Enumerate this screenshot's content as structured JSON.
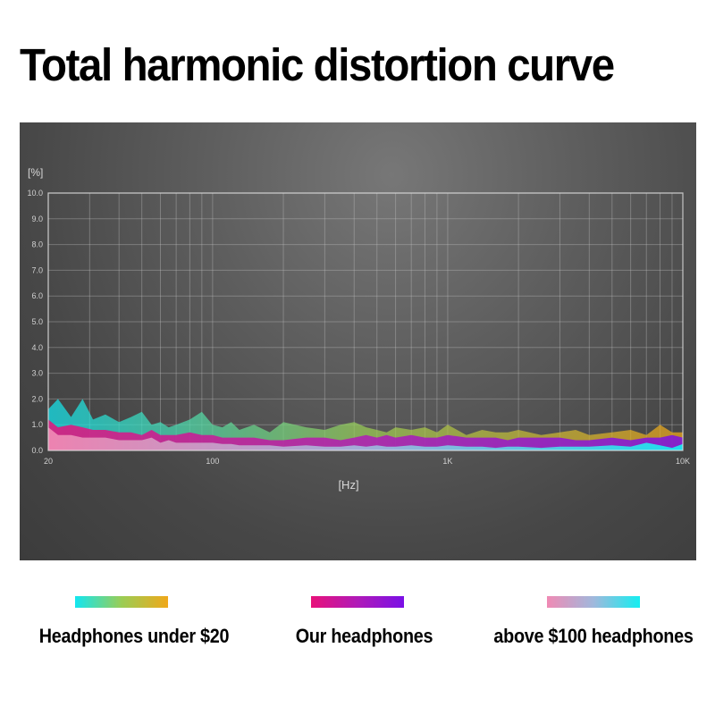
{
  "title": "Total harmonic distortion curve",
  "chart_data": {
    "type": "area",
    "title": "",
    "ylabel": "[%]",
    "xlabel": "[Hz]",
    "xscale": "log",
    "xlim": [
      20,
      10000
    ],
    "ylim": [
      0,
      10
    ],
    "yticks": [
      "0.0",
      "1.0",
      "2.0",
      "3.0",
      "4.0",
      "5.0",
      "6.0",
      "7.0",
      "8.0",
      "9.0",
      "10.0"
    ],
    "xticks": [
      {
        "value": 20,
        "label": "20"
      },
      {
        "value": 100,
        "label": "100"
      },
      {
        "value": 1000,
        "label": "1K"
      },
      {
        "value": 10000,
        "label": "10K"
      }
    ],
    "grid": true,
    "series": [
      {
        "name": "Headphones under $20",
        "gradient": [
          "#12e6f0",
          "#9acd55",
          "#f0a81a"
        ],
        "x": [
          20,
          22,
          25,
          28,
          31,
          35,
          40,
          45,
          50,
          55,
          60,
          65,
          70,
          80,
          90,
          100,
          110,
          120,
          130,
          150,
          175,
          200,
          250,
          300,
          350,
          400,
          450,
          500,
          550,
          600,
          700,
          800,
          900,
          1000,
          1200,
          1400,
          1600,
          1800,
          2000,
          2500,
          3000,
          3500,
          4000,
          5000,
          6000,
          7000,
          8000,
          9000,
          10000
        ],
        "values": [
          1.6,
          2.0,
          1.3,
          2.0,
          1.2,
          1.4,
          1.1,
          1.3,
          1.5,
          1.0,
          1.1,
          0.9,
          1.0,
          1.2,
          1.5,
          1.0,
          0.9,
          1.1,
          0.8,
          1.0,
          0.7,
          1.1,
          0.9,
          0.8,
          1.0,
          1.1,
          0.9,
          0.8,
          0.7,
          0.9,
          0.8,
          0.9,
          0.7,
          1.0,
          0.6,
          0.8,
          0.7,
          0.7,
          0.8,
          0.6,
          0.7,
          0.8,
          0.6,
          0.7,
          0.8,
          0.6,
          1.0,
          0.7,
          0.7
        ]
      },
      {
        "name": "Our headphones",
        "gradient": [
          "#e8127a",
          "#b01ab8",
          "#7a10e6"
        ],
        "x": [
          20,
          22,
          25,
          28,
          31,
          35,
          40,
          45,
          50,
          55,
          60,
          65,
          70,
          80,
          90,
          100,
          110,
          120,
          130,
          150,
          175,
          200,
          250,
          300,
          350,
          400,
          450,
          500,
          550,
          600,
          700,
          800,
          900,
          1000,
          1200,
          1400,
          1600,
          1800,
          2000,
          2500,
          3000,
          3500,
          4000,
          5000,
          6000,
          7000,
          8000,
          9000,
          10000
        ],
        "values": [
          1.2,
          0.9,
          1.0,
          0.9,
          0.8,
          0.8,
          0.7,
          0.7,
          0.6,
          0.8,
          0.6,
          0.6,
          0.6,
          0.7,
          0.6,
          0.6,
          0.5,
          0.5,
          0.5,
          0.5,
          0.4,
          0.4,
          0.5,
          0.5,
          0.4,
          0.5,
          0.6,
          0.5,
          0.6,
          0.5,
          0.6,
          0.5,
          0.5,
          0.6,
          0.5,
          0.5,
          0.5,
          0.4,
          0.5,
          0.5,
          0.5,
          0.4,
          0.4,
          0.5,
          0.4,
          0.5,
          0.5,
          0.6,
          0.5
        ]
      },
      {
        "name": "above $100 headphones",
        "gradient": [
          "#f08ab4",
          "#a0b8dc",
          "#15eef0"
        ],
        "x": [
          20,
          22,
          25,
          28,
          31,
          35,
          40,
          45,
          50,
          55,
          60,
          65,
          70,
          80,
          90,
          100,
          110,
          120,
          130,
          150,
          175,
          200,
          250,
          300,
          350,
          400,
          450,
          500,
          550,
          600,
          700,
          800,
          900,
          1000,
          1200,
          1400,
          1600,
          1800,
          2000,
          2500,
          3000,
          3500,
          4000,
          5000,
          6000,
          7000,
          8000,
          9000,
          10000
        ],
        "values": [
          0.9,
          0.6,
          0.6,
          0.5,
          0.5,
          0.5,
          0.4,
          0.4,
          0.4,
          0.5,
          0.3,
          0.4,
          0.3,
          0.3,
          0.3,
          0.3,
          0.25,
          0.25,
          0.2,
          0.2,
          0.2,
          0.15,
          0.2,
          0.15,
          0.15,
          0.2,
          0.15,
          0.2,
          0.15,
          0.15,
          0.2,
          0.15,
          0.15,
          0.2,
          0.15,
          0.15,
          0.1,
          0.15,
          0.15,
          0.1,
          0.15,
          0.15,
          0.15,
          0.2,
          0.15,
          0.3,
          0.2,
          0.1,
          0.25
        ]
      }
    ],
    "legend_position": "bottom"
  },
  "legend": [
    {
      "label": "Headphones under $20"
    },
    {
      "label": "Our headphones"
    },
    {
      "label": "above $100 headphones"
    }
  ]
}
